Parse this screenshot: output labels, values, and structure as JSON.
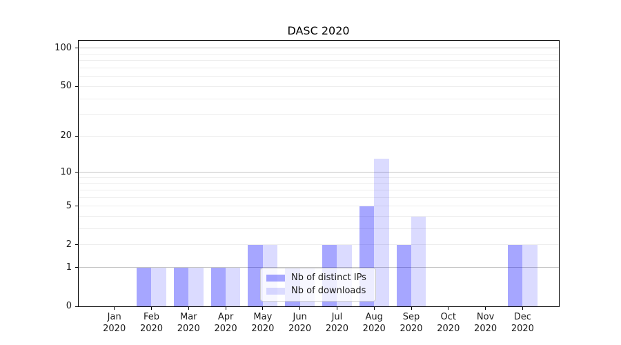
{
  "chart_data": {
    "type": "bar",
    "title": "DASC 2020",
    "categories": [
      "Jan",
      "Feb",
      "Mar",
      "Apr",
      "May",
      "Jun",
      "Jul",
      "Aug",
      "Sep",
      "Oct",
      "Nov",
      "Dec"
    ],
    "x_year_label": "2020",
    "series": [
      {
        "name": "Nb of distinct IPs",
        "color": "rgba(0,0,255,0.35)",
        "values": [
          0,
          1,
          1,
          1,
          2,
          1,
          2,
          5,
          2,
          0,
          0,
          2
        ]
      },
      {
        "name": "Nb of downloads",
        "color": "rgba(0,0,255,0.14)",
        "values": [
          0,
          1,
          1,
          1,
          2,
          1,
          2,
          13,
          4,
          0,
          0,
          2
        ]
      }
    ],
    "yscale": "log1p",
    "ylim": [
      0,
      116
    ],
    "y_tick_labels": [
      0,
      1,
      2,
      5,
      10,
      20,
      50,
      100
    ],
    "y_major_gridlines": [
      1,
      10,
      100
    ],
    "y_minor_gridlines": [
      2,
      3,
      4,
      5,
      6,
      7,
      8,
      9,
      20,
      30,
      40,
      50,
      60,
      70,
      80,
      90
    ],
    "grid": true,
    "legend_position": "lower center",
    "colors": {
      "grid_major": "#c4c4c4",
      "grid_minor": "#ededed",
      "spine": "#000000",
      "text": "#1a1a1a"
    }
  }
}
